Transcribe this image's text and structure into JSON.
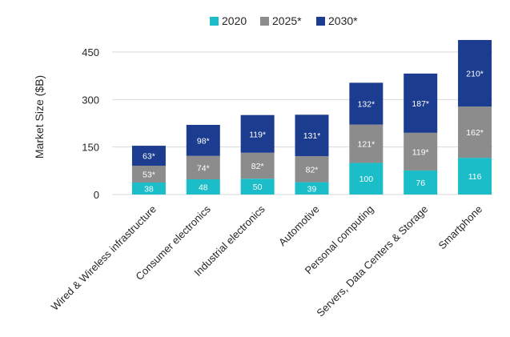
{
  "chart_data": {
    "type": "bar",
    "stacked": true,
    "title": "",
    "xlabel": "",
    "ylabel": "Market Size ($B)",
    "ylim": [
      0,
      500
    ],
    "yticks": [
      "0",
      "150",
      "300",
      "450"
    ],
    "ytick_values": [
      0,
      150,
      300,
      450
    ],
    "legend_position": "top",
    "categories": [
      "Wired & Wireless infrastructure",
      "Consumer electronics",
      "Industrial electronics",
      "Automotive",
      "Personal computing",
      "Servers, Data Centers & Storage",
      "Smartphone"
    ],
    "series": [
      {
        "name": "2020",
        "color": "#1bbdc8",
        "values": [
          38,
          48,
          50,
          39,
          100,
          76,
          116
        ],
        "labels": [
          "38",
          "48",
          "50",
          "39",
          "100",
          "76",
          "116"
        ]
      },
      {
        "name": "2025*",
        "color": "#8c8c8c",
        "values": [
          53,
          74,
          82,
          82,
          121,
          119,
          162
        ],
        "labels": [
          "53*",
          "74*",
          "82*",
          "82*",
          "121*",
          "119*",
          "162*"
        ]
      },
      {
        "name": "2030*",
        "color": "#1b3c8f",
        "values": [
          63,
          98,
          119,
          131,
          132,
          187,
          210
        ],
        "labels": [
          "63*",
          "98*",
          "119*",
          "131*",
          "132*",
          "187*",
          "210*"
        ]
      }
    ]
  }
}
